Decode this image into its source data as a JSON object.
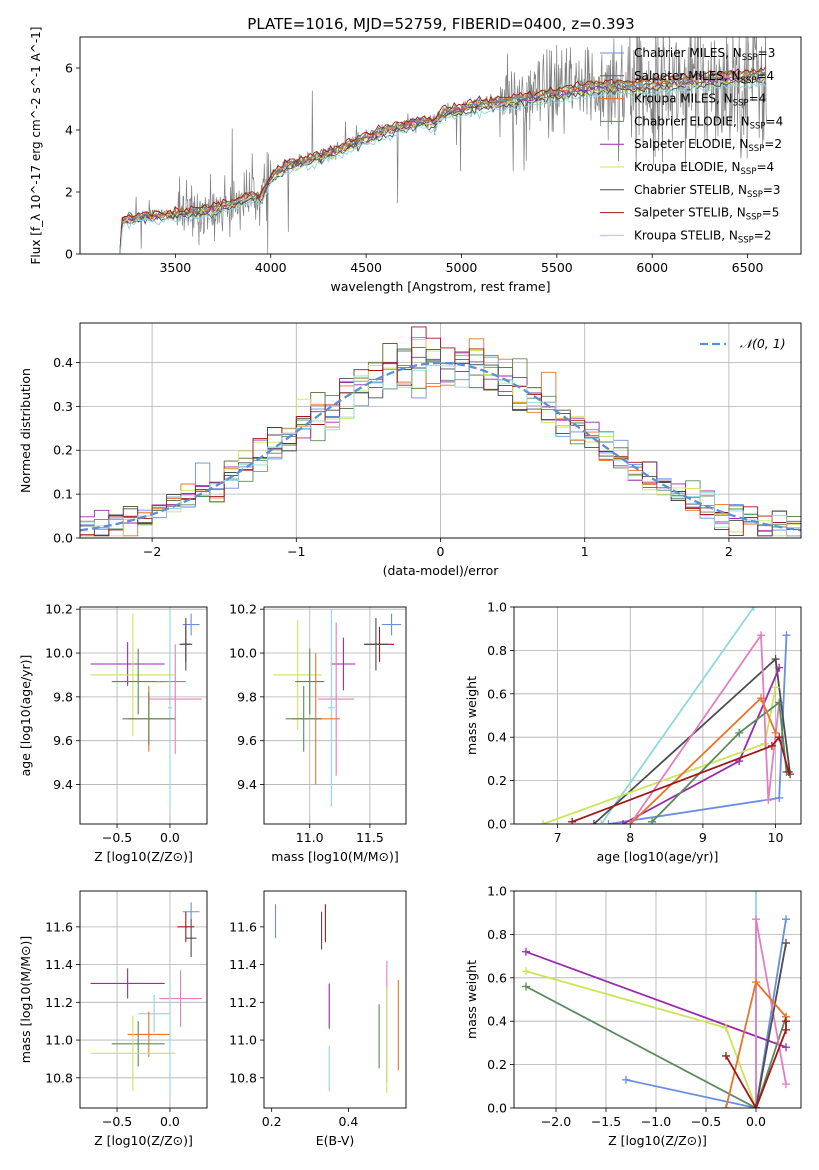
{
  "title": "PLATE=1016, MJD=52759, FIBERID=0400, z=0.393",
  "colors": {
    "chabrier_miles": "#6a8ee0",
    "salpeter_miles": "#556b2f",
    "kroupa_miles": "#e8742a",
    "chabrier_elodie": "#5a8a5a",
    "salpeter_elodie": "#9a2aad",
    "kroupa_elodie": "#cde35a",
    "chabrier_stelib": "#4d4d4d",
    "salpeter_stelib": "#a01818",
    "kroupa_stelib": "#8ed8e0",
    "pink": "#e37fbf",
    "data": "#808080",
    "normal": "#5b8fd6",
    "grid": "#b0b0b0"
  },
  "chart_data": [
    {
      "id": "spectrum",
      "type": "line",
      "xlabel": "wavelength [Angstrom, rest frame]",
      "ylabel": "Flux [f_λ 10^-17 erg cm^-2 s^-1 A^-1]",
      "xlim": [
        3000,
        6780
      ],
      "ylim": [
        0,
        7
      ],
      "xticks": [
        "3500",
        "4000",
        "4500",
        "5000",
        "5500",
        "6000",
        "6500"
      ],
      "yticks": [
        "0",
        "2",
        "4",
        "6"
      ],
      "grid": false,
      "legend_position": "top-right",
      "legend": [
        {
          "label": "Chabrier MILES, N_SSP=3",
          "base": "Chabrier MILES, N",
          "sub": "SSP",
          "suffix": "=3",
          "color_key": "chabrier_miles"
        },
        {
          "label": "Salpeter MILES, N_SSP=4",
          "base": "Salpeter MILES, N",
          "sub": "SSP",
          "suffix": "=4",
          "color_key": "salpeter_miles"
        },
        {
          "label": "Kroupa MILES, N_SSP=4",
          "base": "Kroupa MILES, N",
          "sub": "SSP",
          "suffix": "=4",
          "color_key": "kroupa_miles"
        },
        {
          "label": "Chabrier ELODIE, N_SSP=4",
          "base": "Chabrier ELODIE, N",
          "sub": "SSP",
          "suffix": "=4",
          "color_key": "chabrier_elodie"
        },
        {
          "label": "Salpeter ELODIE, N_SSP=2",
          "base": "Salpeter ELODIE, N",
          "sub": "SSP",
          "suffix": "=2",
          "color_key": "salpeter_elodie"
        },
        {
          "label": "Kroupa ELODIE, N_SSP=4",
          "base": "Kroupa ELODIE, N",
          "sub": "SSP",
          "suffix": "=4",
          "color_key": "kroupa_elodie"
        },
        {
          "label": "Chabrier STELIB, N_SSP=3",
          "base": "Chabrier STELIB, N",
          "sub": "SSP",
          "suffix": "=3",
          "color_key": "chabrier_stelib"
        },
        {
          "label": "Salpeter STELIB, N_SSP=5",
          "base": "Salpeter STELIB, N",
          "sub": "SSP",
          "suffix": "=5",
          "color_key": "salpeter_stelib"
        },
        {
          "label": "Kroupa STELIB, N_SSP=2",
          "base": "Kroupa STELIB, N",
          "sub": "SSP",
          "suffix": "=2",
          "color_key": "kroupa_stelib"
        }
      ],
      "continuum": [
        [
          3210,
          0.1
        ],
        [
          3220,
          1.1
        ],
        [
          3300,
          1.2
        ],
        [
          3400,
          1.25
        ],
        [
          3500,
          1.3
        ],
        [
          3600,
          1.35
        ],
        [
          3700,
          1.45
        ],
        [
          3800,
          1.65
        ],
        [
          3900,
          1.9
        ],
        [
          3950,
          1.85
        ],
        [
          4000,
          2.5
        ],
        [
          4100,
          2.9
        ],
        [
          4200,
          3.05
        ],
        [
          4300,
          3.25
        ],
        [
          4400,
          3.5
        ],
        [
          4500,
          3.75
        ],
        [
          4600,
          4.0
        ],
        [
          4700,
          4.15
        ],
        [
          4800,
          4.3
        ],
        [
          4860,
          4.25
        ],
        [
          4900,
          4.55
        ],
        [
          5000,
          4.7
        ],
        [
          5100,
          4.85
        ],
        [
          5200,
          4.9
        ],
        [
          5300,
          5.0
        ],
        [
          5400,
          5.1
        ],
        [
          5500,
          5.2
        ],
        [
          5600,
          5.3
        ],
        [
          5700,
          5.4
        ],
        [
          5800,
          5.45
        ],
        [
          5900,
          5.45
        ],
        [
          6000,
          5.5
        ],
        [
          6100,
          5.55
        ],
        [
          6200,
          5.6
        ],
        [
          6300,
          5.65
        ],
        [
          6400,
          5.7
        ],
        [
          6500,
          5.75
        ],
        [
          6600,
          5.8
        ]
      ],
      "model_offsets": [
        0.0,
        -0.05,
        0.05,
        0.1,
        -0.1,
        -0.15,
        -0.2,
        0.15,
        -0.3
      ]
    },
    {
      "id": "residuals",
      "type": "histogram",
      "xlabel": "(data-model)/error",
      "ylabel": "Normed distribution",
      "xlim": [
        -2.5,
        2.5
      ],
      "ylim": [
        0,
        0.49
      ],
      "xticks": [
        "−2",
        "−1",
        "0",
        "1",
        "2"
      ],
      "yticks": [
        "0.0",
        "0.1",
        "0.2",
        "0.3",
        "0.4"
      ],
      "grid": true,
      "legend_position": "top-right",
      "legend_label": "𝒩(0, 1)",
      "bin_width": 0.1
    },
    {
      "id": "age_vs_Z",
      "type": "errorbar",
      "xlabel": "Z [log10(Z/Z⊙)]",
      "ylabel": "age [log10(age/yr)]",
      "xlim": [
        -0.85,
        0.35
      ],
      "ylim": [
        9.22,
        10.21
      ],
      "xticks": [
        "−0.5",
        "0.0"
      ],
      "yticks": [
        "9.4",
        "9.6",
        "9.8",
        "10.0",
        "10.2"
      ],
      "grid": true,
      "points": [
        {
          "x": 0.2,
          "xerr": 0.08,
          "y": 10.13,
          "yerr": 0.05,
          "c": "chabrier_miles"
        },
        {
          "x": 0.15,
          "xerr": 0.06,
          "y": 10.04,
          "yerr": 0.08,
          "c": "salpeter_stelib"
        },
        {
          "x": 0.15,
          "xerr": 0.05,
          "y": 10.04,
          "yerr": 0.12,
          "c": "chabrier_stelib"
        },
        {
          "x": -0.4,
          "xerr": 0.35,
          "y": 9.95,
          "yerr": 0.1,
          "c": "salpeter_elodie"
        },
        {
          "x": -0.35,
          "xerr": 0.4,
          "y": 9.9,
          "yerr": 0.28,
          "c": "kroupa_elodie"
        },
        {
          "x": -0.3,
          "xerr": 0.25,
          "y": 9.87,
          "yerr": 0.15,
          "c": "chabrier_elodie"
        },
        {
          "x": 0.0,
          "xerr": 0.15,
          "y": 9.87,
          "yerr": 0.1,
          "c": "kroupa_miles"
        },
        {
          "x": 0.0,
          "xerr": 0.02,
          "y": 9.75,
          "yerr": 0.45,
          "c": "kroupa_stelib"
        },
        {
          "x": 0.05,
          "xerr": 0.25,
          "y": 9.79,
          "yerr": 0.25,
          "c": "pink"
        },
        {
          "x": -0.2,
          "xerr": 0.2,
          "y": 9.7,
          "yerr": 0.15,
          "c": "kroupa_miles"
        },
        {
          "x": -0.2,
          "xerr": 0.25,
          "y": 9.7,
          "yerr": 0.12,
          "c": "chabrier_elodie"
        }
      ]
    },
    {
      "id": "age_vs_mass",
      "type": "errorbar",
      "xlabel": "mass [log10(M/M⊙)]",
      "ylabel": "",
      "xlim": [
        10.62,
        11.8
      ],
      "ylim": [
        9.22,
        10.21
      ],
      "xticks": [
        "11.0",
        "11.5"
      ],
      "yticks": [
        "9.4",
        "9.6",
        "9.8",
        "10.0",
        "10.2"
      ],
      "grid": true,
      "points": [
        {
          "x": 11.68,
          "xerr": 0.08,
          "y": 10.13,
          "yerr": 0.05,
          "c": "chabrier_miles"
        },
        {
          "x": 11.58,
          "xerr": 0.12,
          "y": 10.04,
          "yerr": 0.08,
          "c": "salpeter_stelib"
        },
        {
          "x": 11.55,
          "xerr": 0.1,
          "y": 10.04,
          "yerr": 0.12,
          "c": "chabrier_stelib"
        },
        {
          "x": 11.28,
          "xerr": 0.1,
          "y": 9.95,
          "yerr": 0.12,
          "c": "salpeter_elodie"
        },
        {
          "x": 10.9,
          "xerr": 0.2,
          "y": 9.9,
          "yerr": 0.25,
          "c": "kroupa_elodie"
        },
        {
          "x": 11.0,
          "xerr": 0.12,
          "y": 9.87,
          "yerr": 0.15,
          "c": "chabrier_elodie"
        },
        {
          "x": 11.22,
          "xerr": 0.15,
          "y": 9.79,
          "yerr": 0.35,
          "c": "pink"
        },
        {
          "x": 11.18,
          "xerr": 0.03,
          "y": 9.75,
          "yerr": 0.45,
          "c": "kroupa_stelib"
        },
        {
          "x": 11.05,
          "xerr": 0.2,
          "y": 9.7,
          "yerr": 0.3,
          "c": "kroupa_miles"
        },
        {
          "x": 10.95,
          "xerr": 0.15,
          "y": 9.7,
          "yerr": 0.15,
          "c": "chabrier_elodie"
        }
      ]
    },
    {
      "id": "weight_vs_age",
      "type": "line",
      "xlabel": "age [log10(age/yr)]",
      "ylabel": "mass weight",
      "xlim": [
        6.4,
        10.35
      ],
      "ylim": [
        0,
        1
      ],
      "xticks": [
        "7",
        "8",
        "9",
        "10"
      ],
      "yticks": [
        "0.0",
        "0.2",
        "0.4",
        "0.6",
        "0.8",
        "1.0"
      ],
      "grid": true,
      "series": [
        {
          "c": "chabrier_miles",
          "x": [
            7.7,
            10.05,
            10.15
          ],
          "y": [
            0.0,
            0.12,
            0.87
          ]
        },
        {
          "c": "kroupa_stelib",
          "x": [
            7.6,
            9.7
          ],
          "y": [
            0.0,
            1.0
          ]
        },
        {
          "c": "chabrier_stelib",
          "x": [
            7.5,
            10.0,
            10.2
          ],
          "y": [
            0.0,
            0.76,
            0.23
          ]
        },
        {
          "c": "salpeter_elodie",
          "x": [
            7.9,
            9.5,
            10.05
          ],
          "y": [
            0.0,
            0.29,
            0.72
          ]
        },
        {
          "c": "kroupa_elodie",
          "x": [
            6.8,
            9.85,
            10.0
          ],
          "y": [
            0.0,
            0.37,
            0.63
          ]
        },
        {
          "c": "pink",
          "x": [
            8.0,
            9.8,
            9.9,
            10.05
          ],
          "y": [
            0.0,
            0.87,
            0.11,
            0.56
          ]
        },
        {
          "c": "chabrier_elodie",
          "x": [
            8.3,
            9.5,
            10.05,
            10.15
          ],
          "y": [
            0.01,
            0.42,
            0.56,
            0.24
          ]
        },
        {
          "c": "kroupa_miles",
          "x": [
            8.0,
            9.8,
            10.0
          ],
          "y": [
            0.0,
            0.58,
            0.42
          ]
        },
        {
          "c": "salpeter_stelib",
          "x": [
            7.2,
            9.95,
            10.05,
            10.18
          ],
          "y": [
            0.01,
            0.36,
            0.4,
            0.24
          ]
        }
      ]
    },
    {
      "id": "mass_vs_Z",
      "type": "errorbar",
      "xlabel": "Z [log10(Z/Z⊙)]",
      "ylabel": "mass [log10(M/M⊙)]",
      "xlim": [
        -0.85,
        0.35
      ],
      "ylim": [
        10.64,
        11.79
      ],
      "xticks": [
        "−0.5",
        "0.0"
      ],
      "yticks": [
        "10.8",
        "11.0",
        "11.2",
        "11.4",
        "11.6"
      ],
      "grid": true,
      "points": [
        {
          "x": 0.2,
          "xerr": 0.08,
          "y": 11.68,
          "yerr": 0.05,
          "c": "chabrier_miles"
        },
        {
          "x": 0.15,
          "xerr": 0.08,
          "y": 11.6,
          "yerr": 0.08,
          "c": "salpeter_stelib"
        },
        {
          "x": 0.2,
          "xerr": 0.05,
          "y": 11.54,
          "yerr": 0.1,
          "c": "chabrier_stelib"
        },
        {
          "x": -0.4,
          "xerr": 0.35,
          "y": 11.3,
          "yerr": 0.08,
          "c": "salpeter_elodie"
        },
        {
          "x": 0.1,
          "xerr": 0.2,
          "y": 11.22,
          "yerr": 0.15,
          "c": "pink"
        },
        {
          "x": -0.15,
          "xerr": 0.15,
          "y": 11.14,
          "yerr": 0.1,
          "c": "kroupa_stelib"
        },
        {
          "x": -0.2,
          "xerr": 0.2,
          "y": 11.03,
          "yerr": 0.12,
          "c": "kroupa_miles"
        },
        {
          "x": -0.3,
          "xerr": 0.25,
          "y": 10.98,
          "yerr": 0.12,
          "c": "chabrier_elodie"
        },
        {
          "x": -0.35,
          "xerr": 0.4,
          "y": 10.93,
          "yerr": 0.2,
          "c": "kroupa_elodie"
        },
        {
          "x": 0.0,
          "xerr": 0.02,
          "y": 11.0,
          "yerr": 0.3,
          "c": "kroupa_stelib"
        }
      ]
    },
    {
      "id": "mass_vs_ebv",
      "type": "errorbar",
      "xlabel": "E(B-V)",
      "ylabel": "",
      "xlim": [
        0.18,
        0.55
      ],
      "ylim": [
        10.64,
        11.79
      ],
      "xticks": [
        "0.2",
        "0.4"
      ],
      "yticks": [
        "10.8",
        "11.0",
        "11.2",
        "11.4",
        "11.6"
      ],
      "grid": false,
      "points": [
        {
          "x": 0.21,
          "xerr": 0.0,
          "y": 11.63,
          "yerr": 0.09,
          "c": "chabrier_miles"
        },
        {
          "x": 0.34,
          "xerr": 0.0,
          "y": 11.62,
          "yerr": 0.1,
          "c": "salpeter_stelib"
        },
        {
          "x": 0.33,
          "xerr": 0.0,
          "y": 11.58,
          "yerr": 0.1,
          "c": "chabrier_stelib"
        },
        {
          "x": 0.35,
          "xerr": 0.0,
          "y": 11.18,
          "yerr": 0.12,
          "c": "salpeter_elodie"
        },
        {
          "x": 0.35,
          "xerr": 0.0,
          "y": 10.85,
          "yerr": 0.12,
          "c": "kroupa_stelib"
        },
        {
          "x": 0.48,
          "xerr": 0.0,
          "y": 11.02,
          "yerr": 0.17,
          "c": "chabrier_elodie"
        },
        {
          "x": 0.5,
          "xerr": 0.0,
          "y": 11.1,
          "yerr": 0.32,
          "c": "pink"
        },
        {
          "x": 0.5,
          "xerr": 0.0,
          "y": 11.0,
          "yerr": 0.28,
          "c": "kroupa_elodie"
        },
        {
          "x": 0.53,
          "xerr": 0.0,
          "y": 11.08,
          "yerr": 0.24,
          "c": "kroupa_miles"
        }
      ]
    },
    {
      "id": "weight_vs_Z",
      "type": "line",
      "xlabel": "Z [log10(Z/Z⊙)]",
      "ylabel": "mass weight",
      "xlim": [
        -2.42,
        0.45
      ],
      "ylim": [
        0,
        1
      ],
      "xticks": [
        "−2.0",
        "−1.5",
        "−1.0",
        "−0.5",
        "0.0"
      ],
      "yticks": [
        "0.0",
        "0.2",
        "0.4",
        "0.6",
        "0.8",
        "1.0"
      ],
      "grid": true,
      "series": [
        {
          "c": "chabrier_miles",
          "x": [
            -1.3,
            0.0,
            0.3
          ],
          "y": [
            0.13,
            0.0,
            0.87
          ]
        },
        {
          "c": "salpeter_elodie",
          "x": [
            -2.3,
            0.3
          ],
          "y": [
            0.72,
            0.28
          ]
        },
        {
          "c": "kroupa_elodie",
          "x": [
            -2.3,
            -0.3,
            0.0
          ],
          "y": [
            0.63,
            0.37,
            0.0
          ]
        },
        {
          "c": "chabrier_elodie",
          "x": [
            -2.3,
            0.0,
            0.3
          ],
          "y": [
            0.56,
            0.0,
            0.42
          ]
        },
        {
          "c": "kroupa_stelib",
          "x": [
            0.0,
            0.0
          ],
          "y": [
            0.0,
            1.0
          ]
        },
        {
          "c": "pink",
          "x": [
            0.0,
            0.0,
            0.3
          ],
          "y": [
            0.0,
            0.87,
            0.11
          ]
        },
        {
          "c": "chabrier_stelib",
          "x": [
            0.0,
            0.3
          ],
          "y": [
            0.0,
            0.76
          ]
        },
        {
          "c": "kroupa_miles",
          "x": [
            -0.3,
            0.0,
            0.3
          ],
          "y": [
            0.0,
            0.58,
            0.42
          ]
        },
        {
          "c": "salpeter_stelib",
          "x": [
            -0.3,
            0.0,
            0.3,
            0.3
          ],
          "y": [
            0.24,
            0.0,
            0.36,
            0.4
          ]
        }
      ]
    }
  ]
}
